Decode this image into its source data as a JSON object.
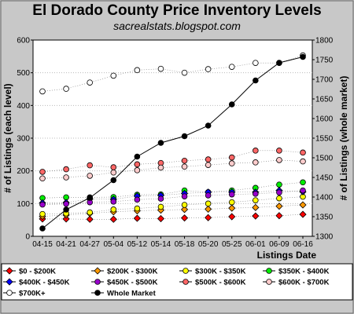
{
  "chart_data": {
    "type": "line",
    "title": "El Dorado County Price Inventory Levels",
    "subtitle": "sacrealstats.blogspot.com",
    "xlabel": "Listings Date",
    "ylabel_left": "# of Listings (each level)",
    "ylabel_right": "# of Listings (whole market)",
    "ylim_left": [
      0,
      600
    ],
    "ylim_right": [
      1300,
      1800
    ],
    "yticks_left": [
      "0",
      "100",
      "200",
      "300",
      "400",
      "500",
      "600"
    ],
    "yticks_right": [
      "1300",
      "1350",
      "1400",
      "1450",
      "1500",
      "1550",
      "1600",
      "1650",
      "1700",
      "1750",
      "1800"
    ],
    "categories": [
      "04-15",
      "04-21",
      "04-27",
      "05-04",
      "05-12",
      "05-14",
      "05-18",
      "05-20",
      "05-25",
      "06-01",
      "06-09",
      "06-16"
    ],
    "legend_position": "bottom",
    "series": [
      {
        "name": "$0 - $200K",
        "axis": "left",
        "color": "#ff0000",
        "marker": "diamond",
        "values": [
          53,
          53,
          52,
          52,
          55,
          54,
          56,
          57,
          60,
          62,
          63,
          67
        ]
      },
      {
        "name": "$200K - $300K",
        "axis": "left",
        "color": "#ff9900",
        "marker": "diamond",
        "values": [
          61,
          65,
          70,
          75,
          78,
          80,
          82,
          83,
          86,
          88,
          92,
          96
        ]
      },
      {
        "name": "$300K - $350K",
        "axis": "left",
        "color": "#ffff00",
        "marker": "circle",
        "values": [
          68,
          70,
          73,
          82,
          85,
          90,
          96,
          100,
          104,
          110,
          116,
          121
        ]
      },
      {
        "name": "$350K - $400K",
        "axis": "left",
        "color": "#00ee00",
        "marker": "circle",
        "values": [
          117,
          119,
          119,
          120,
          127,
          128,
          140,
          135,
          140,
          148,
          158,
          165
        ]
      },
      {
        "name": "$400K - $450K",
        "axis": "left",
        "color": "#0000ff",
        "marker": "diamond",
        "values": [
          102,
          103,
          114,
          113,
          123,
          125,
          131,
          135,
          135,
          135,
          140,
          136
        ]
      },
      {
        "name": "$450K - $500K",
        "axis": "left",
        "color": "#9900cc",
        "marker": "circle",
        "values": [
          97,
          99,
          104,
          106,
          112,
          115,
          122,
          125,
          128,
          130,
          134,
          140
        ]
      },
      {
        "name": "$500K - $600K",
        "axis": "left",
        "color": "#ff6666",
        "marker": "circle",
        "values": [
          197,
          205,
          217,
          211,
          220,
          224,
          231,
          235,
          241,
          262,
          262,
          256
        ]
      },
      {
        "name": "$600K - $700K",
        "axis": "left",
        "color": "#ffcccc",
        "marker": "circle",
        "values": [
          177,
          180,
          185,
          195,
          202,
          210,
          213,
          218,
          223,
          226,
          233,
          229
        ]
      },
      {
        "name": "$700K+",
        "axis": "left",
        "color": "#ffffff",
        "marker": "circle",
        "values": [
          443,
          451,
          470,
          491,
          508,
          512,
          500,
          511,
          518,
          530,
          530,
          553
        ]
      },
      {
        "name": "Whole Market",
        "axis": "right",
        "color": "#000000",
        "marker": "circle",
        "values": [
          1320,
          1368,
          1398,
          1443,
          1503,
          1538,
          1555,
          1582,
          1636,
          1697,
          1742,
          1757
        ]
      }
    ]
  }
}
